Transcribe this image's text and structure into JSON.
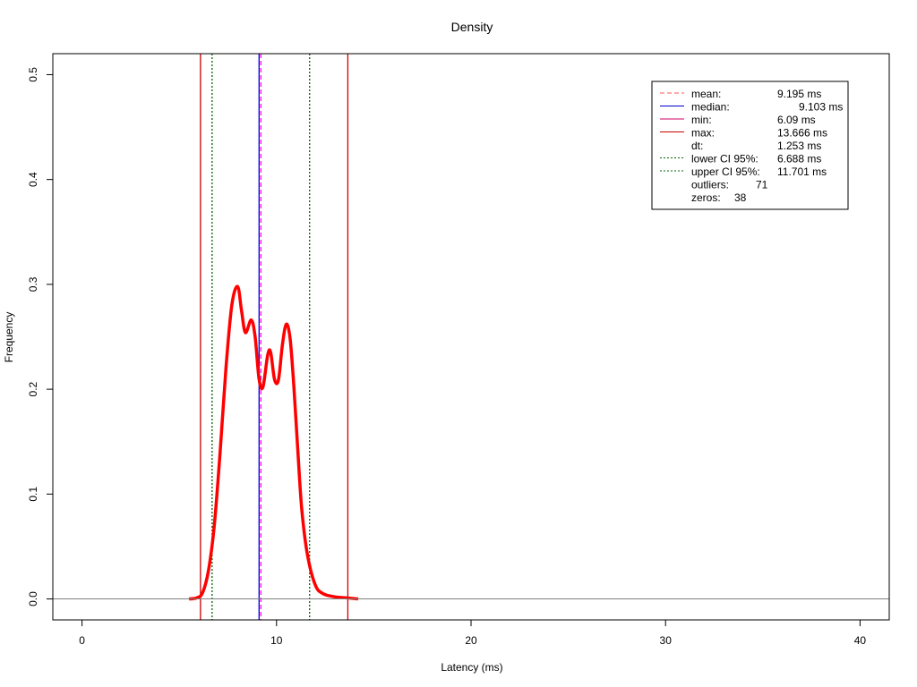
{
  "chart_data": {
    "type": "line",
    "title": "Density",
    "xlabel": "Latency (ms)",
    "ylabel": "Frequency",
    "xlim": [
      -1.5,
      41.5
    ],
    "ylim": [
      -0.02,
      0.52
    ],
    "x_ticks": [
      0,
      10,
      20,
      30,
      40
    ],
    "x_tick_labels": [
      "0",
      "10",
      "20",
      "30",
      "40"
    ],
    "y_ticks": [
      0.0,
      0.1,
      0.2,
      0.3,
      0.4,
      0.5
    ],
    "y_tick_labels": [
      "0.0",
      "0.1",
      "0.2",
      "0.3",
      "0.4",
      "0.5"
    ],
    "baseline": {
      "y": 0,
      "color": "#808080"
    },
    "series": [
      {
        "color": "#ff0000",
        "x": [
          5.5,
          5.9,
          6.2,
          6.5,
          6.8,
          7.1,
          7.4,
          7.7,
          8.0,
          8.2,
          8.4,
          8.7,
          8.9,
          9.1,
          9.3,
          9.55,
          9.7,
          9.9,
          10.1,
          10.3,
          10.5,
          10.7,
          10.9,
          11.1,
          11.3,
          11.6,
          12.0,
          12.4,
          13.0,
          13.6,
          14.2
        ],
        "y": [
          0.0,
          0.001,
          0.006,
          0.027,
          0.07,
          0.14,
          0.22,
          0.28,
          0.298,
          0.275,
          0.254,
          0.266,
          0.25,
          0.21,
          0.202,
          0.233,
          0.235,
          0.209,
          0.209,
          0.242,
          0.262,
          0.248,
          0.2,
          0.14,
          0.085,
          0.041,
          0.013,
          0.005,
          0.002,
          0.001,
          0.0
        ]
      }
    ],
    "vlines": [
      {
        "key": "min",
        "x": 6.09,
        "color": "#cc0000",
        "dash": "solid"
      },
      {
        "key": "max",
        "x": 13.666,
        "color": "#cc0000",
        "dash": "solid"
      },
      {
        "key": "median",
        "x": 9.103,
        "color": "#0000cc",
        "dash": "solid"
      },
      {
        "key": "mean",
        "x": 9.195,
        "color": "#ff00ff",
        "dash": "dashed"
      },
      {
        "key": "lower_ci",
        "x": 6.688,
        "color": "#006400",
        "dash": "dotted"
      },
      {
        "key": "upper_ci",
        "x": 11.701,
        "color": "#006400",
        "dash": "dotted"
      }
    ],
    "legend": {
      "position": "top-right",
      "entries": [
        {
          "label": "mean:",
          "value": "9.195 ms",
          "line_color": "#ff5555",
          "dash": "dashed"
        },
        {
          "label": "median:",
          "value": "9.103 ms",
          "line_color": "#0000cc",
          "dash": "solid"
        },
        {
          "label": "min:",
          "value": "6.09 ms",
          "line_color": "#cc0066",
          "dash": "solid"
        },
        {
          "label": "max:",
          "value": "13.666 ms",
          "line_color": "#cc0000",
          "dash": "solid"
        },
        {
          "label": "dt:",
          "value": "1.253 ms",
          "line_color": "",
          "dash": "none"
        },
        {
          "label": "lower CI 95%:",
          "value": "6.688 ms",
          "line_color": "#006400",
          "dash": "dotted"
        },
        {
          "label": "upper CI 95%:",
          "value": "11.701 ms",
          "line_color": "#006400",
          "dash": "dotted"
        },
        {
          "label": "outliers:",
          "value": "71",
          "line_color": "",
          "dash": "none"
        },
        {
          "label": "zeros:",
          "value": "38",
          "line_color": "",
          "dash": "none"
        }
      ]
    }
  }
}
